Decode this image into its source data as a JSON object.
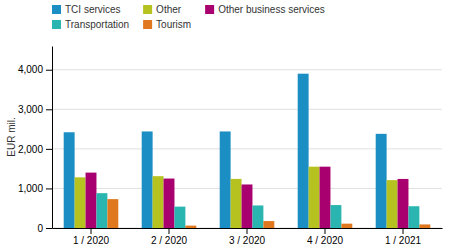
{
  "chart_data": {
    "type": "bar",
    "categories": [
      "1 / 2020",
      "2 / 2020",
      "3 / 2020",
      "4 / 2020",
      "1 / 2021"
    ],
    "series": [
      {
        "name": "TCI services",
        "color": "#1b8fc4",
        "values": [
          2420,
          2440,
          2440,
          3900,
          2380
        ]
      },
      {
        "name": "Other",
        "color": "#b5c220",
        "values": [
          1280,
          1310,
          1240,
          1550,
          1210
        ]
      },
      {
        "name": "Other business services",
        "color": "#a8006e",
        "values": [
          1400,
          1250,
          1100,
          1550,
          1240
        ]
      },
      {
        "name": "Transportation",
        "color": "#2ab5b0",
        "values": [
          880,
          540,
          570,
          580,
          550
        ]
      },
      {
        "name": "Tourism",
        "color": "#e07820",
        "values": [
          730,
          60,
          175,
          110,
          90
        ]
      }
    ],
    "ylabel": "EUR mil.",
    "ylim": [
      0,
      4600
    ],
    "yticks": [
      0,
      {
        "value": 1000,
        "label": "1,000"
      },
      {
        "value": 2000,
        "label": "2,000"
      },
      {
        "value": 3000,
        "label": "3,000"
      },
      {
        "value": 4000,
        "label": "4,000"
      }
    ],
    "grid": true,
    "legend": "upper left"
  }
}
